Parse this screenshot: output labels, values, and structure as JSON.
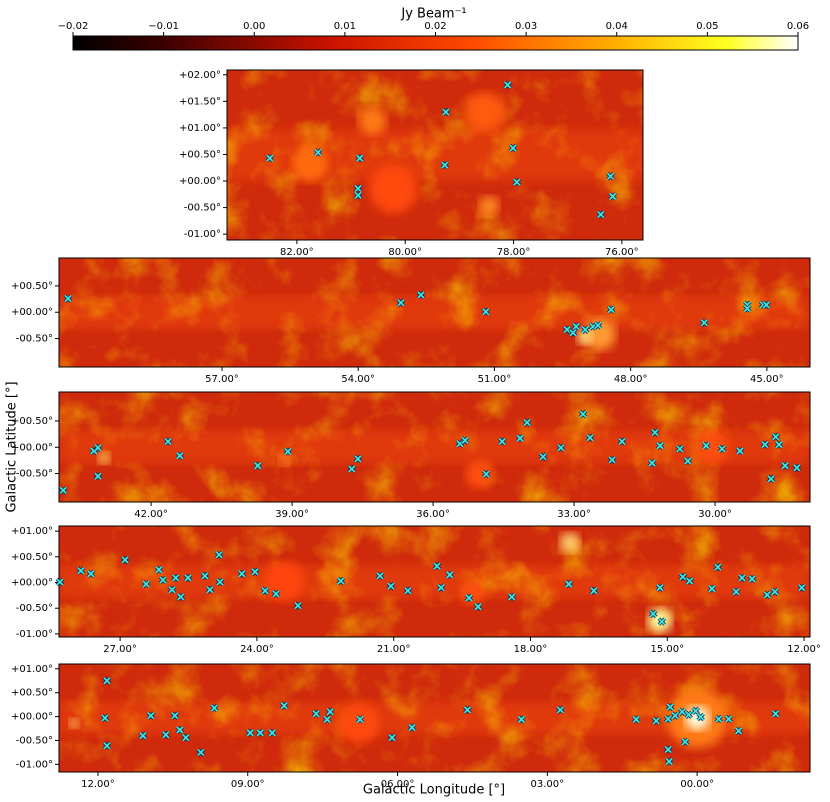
{
  "chart_data": [
    {
      "type": "colorbar",
      "label": "Jy Beam⁻¹",
      "lim": [
        -0.02,
        0.06
      ],
      "ticks": [
        {
          "value": -0.02,
          "label": "−0.02"
        },
        {
          "value": -0.01,
          "label": "−0.01"
        },
        {
          "value": 0,
          "label": "0.00"
        },
        0.01,
        0.02,
        0.03,
        0.04,
        0.05,
        0.06
      ]
    },
    {
      "type": "scatter",
      "xlim": [
        83.29,
        75.61
      ],
      "ylim": [
        -1.11,
        2.09
      ],
      "xticks": [
        {
          "value": 82,
          "label": "82.00°"
        },
        {
          "value": 80,
          "label": "80.00°"
        },
        {
          "value": 78,
          "label": "78.00°"
        },
        {
          "value": 76,
          "label": "76.00°"
        }
      ],
      "yticks": [
        {
          "value": 2,
          "label": "+02.00°"
        },
        {
          "value": 1.5,
          "label": "+01.50°"
        },
        {
          "value": 1,
          "label": "+01.00°"
        },
        {
          "value": 0.5,
          "label": "+00.50°"
        },
        {
          "value": 0,
          "label": "+00.00°"
        },
        {
          "value": -0.5,
          "label": "-00.50°"
        },
        {
          "value": -1,
          "label": "-01.00°"
        }
      ],
      "series": [
        {
          "color": "#3fe0e6",
          "x": [
            78.11,
            79.25,
            78.01,
            82.5,
            81.61,
            80.84,
            79.27,
            76.21,
            77.94,
            80.87,
            80.87,
            76.17,
            76.39
          ],
          "values": [
            1.81,
            1.3,
            0.62,
            0.43,
            0.54,
            0.43,
            0.3,
            0.09,
            -0.02,
            -0.14,
            -0.27,
            -0.29,
            -0.63
          ]
        }
      ]
    },
    {
      "type": "scatter",
      "xlim": [
        60.59,
        44.05
      ],
      "ylim": [
        -1.04,
        1.03
      ],
      "xticks": [
        {
          "value": 57,
          "label": "57.00°"
        },
        {
          "value": 54,
          "label": "54.00°"
        },
        {
          "value": 51,
          "label": "51.00°"
        },
        {
          "value": 48,
          "label": "48.00°"
        },
        {
          "value": 45,
          "label": "45.00°"
        }
      ],
      "yticks": [
        {
          "value": 0.5,
          "label": "+00.50°"
        },
        {
          "value": 0,
          "label": "+00.00°"
        },
        {
          "value": -0.5,
          "label": "-00.50°"
        }
      ],
      "series": [
        {
          "color": "#3fe0e6",
          "x": [
            60.39,
            53.06,
            52.62,
            51.19,
            48.43,
            46.38,
            45.43,
            45.43,
            45.08,
            45.01,
            49.4,
            49.2,
            49.0,
            48.83,
            48.72,
            49.27
          ],
          "values": [
            0.26,
            0.18,
            0.33,
            0.01,
            0.05,
            -0.2,
            0.14,
            0.07,
            0.14,
            0.14,
            -0.33,
            -0.27,
            -0.33,
            -0.27,
            -0.25,
            -0.39
          ]
        }
      ]
    },
    {
      "type": "scatter",
      "xlim": [
        43.96,
        27.98
      ],
      "ylim": [
        -1.04,
        1.05
      ],
      "ylabel": "Galactic Latitude [°]",
      "xticks": [
        {
          "value": 42,
          "label": "42.00°"
        },
        {
          "value": 39,
          "label": "39.00°"
        },
        {
          "value": 36,
          "label": "36.00°"
        },
        {
          "value": 33,
          "label": "33.00°"
        },
        {
          "value": 30,
          "label": "30.00°"
        }
      ],
      "yticks": [
        {
          "value": 0.5,
          "label": "+00.50°"
        },
        {
          "value": 0,
          "label": "+00.00°"
        },
        {
          "value": -0.5,
          "label": "-00.50°"
        }
      ],
      "series": [
        {
          "color": "#3fe0e6",
          "x": [
            43.87,
            43.22,
            43.13,
            43.13,
            41.64,
            41.39,
            39.73,
            39.09,
            37.73,
            37.6,
            35.43,
            35.32,
            34.87,
            34.53,
            34.15,
            34.0,
            33.66,
            33.28,
            32.81,
            32.66,
            32.19,
            31.98,
            31.28,
            31.17,
            31.34,
            30.75,
            30.58,
            30.19,
            29.85,
            29.47,
            28.94,
            28.71,
            28.64,
            28.81,
            28.51,
            28.26
          ],
          "values": [
            -0.82,
            -0.07,
            -0.01,
            -0.55,
            0.11,
            -0.16,
            -0.35,
            -0.08,
            -0.41,
            -0.22,
            0.07,
            0.13,
            -0.51,
            0.11,
            0.17,
            0.47,
            -0.18,
            -0.01,
            0.63,
            0.18,
            -0.24,
            0.11,
            0.28,
            0.03,
            -0.3,
            -0.03,
            -0.26,
            0.03,
            -0.03,
            -0.07,
            0.05,
            0.2,
            0.05,
            -0.6,
            -0.35,
            -0.39
          ]
        }
      ]
    },
    {
      "type": "scatter",
      "xlim": [
        28.34,
        11.87
      ],
      "ylim": [
        -1.06,
        1.1
      ],
      "xticks": [
        {
          "value": 27,
          "label": "27.00°"
        },
        {
          "value": 24,
          "label": "24.00°"
        },
        {
          "value": 21,
          "label": "21.00°"
        },
        {
          "value": 18,
          "label": "18.00°"
        },
        {
          "value": 15,
          "label": "15.00°"
        },
        {
          "value": 12,
          "label": "12.00°"
        }
      ],
      "yticks": [
        {
          "value": 1,
          "label": "+01.00°"
        },
        {
          "value": 0.5,
          "label": "+00.50°"
        },
        {
          "value": 0,
          "label": "+00.00°"
        },
        {
          "value": -0.5,
          "label": "-00.50°"
        },
        {
          "value": -1,
          "label": "-01.00°"
        }
      ],
      "series": [
        {
          "color": "#3fe0e6",
          "x": [
            28.32,
            27.86,
            27.64,
            26.89,
            26.43,
            26.15,
            26.06,
            25.86,
            25.78,
            25.67,
            25.51,
            25.14,
            25.03,
            24.83,
            24.81,
            24.33,
            24.04,
            23.82,
            23.58,
            23.1,
            22.16,
            21.3,
            21.06,
            20.69,
            20.05,
            19.96,
            19.77,
            19.35,
            19.15,
            18.41,
            17.16,
            16.61,
            15.16,
            15.31,
            15.12,
            14.66,
            14.51,
            14.02,
            13.89,
            13.49,
            13.36,
            13.14,
            12.81,
            12.64,
            12.05
          ],
          "values": [
            0.01,
            0.23,
            0.17,
            0.44,
            -0.03,
            0.25,
            0.05,
            -0.14,
            0.09,
            -0.28,
            0.09,
            0.13,
            -0.14,
            0.54,
            0.01,
            0.17,
            0.21,
            -0.16,
            -0.22,
            -0.45,
            0.03,
            0.13,
            -0.07,
            -0.16,
            0.32,
            -0.1,
            0.15,
            -0.3,
            -0.47,
            -0.28,
            -0.03,
            -0.16,
            -0.1,
            -0.61,
            -0.76,
            0.11,
            0.03,
            -0.12,
            0.3,
            -0.18,
            0.09,
            0.07,
            -0.24,
            -0.18,
            -0.1
          ]
        }
      ]
    },
    {
      "type": "scatter",
      "xlim": [
        12.78,
        -2.26
      ],
      "ylim": [
        -1.16,
        1.1
      ],
      "xlabel": "Galactic Longitude [°]",
      "xticks": [
        {
          "value": 12,
          "label": "12.00°"
        },
        {
          "value": 9,
          "label": "09.00°"
        },
        {
          "value": 6,
          "label": "06.00°"
        },
        {
          "value": 3,
          "label": "03.00°"
        },
        {
          "value": 0,
          "label": "00.00°"
        }
      ],
      "yticks": [
        {
          "value": 1,
          "label": "+01.00°"
        },
        {
          "value": 0.5,
          "label": "+00.50°"
        },
        {
          "value": 0,
          "label": "+00.00°"
        },
        {
          "value": -0.5,
          "label": "-00.50°"
        },
        {
          "value": -1,
          "label": "-01.00°"
        }
      ],
      "series": [
        {
          "color": "#3fe0e6",
          "x": [
            11.82,
            11.86,
            11.82,
            11.1,
            10.94,
            10.64,
            10.46,
            10.36,
            10.24,
            9.94,
            9.67,
            8.95,
            8.75,
            8.51,
            8.27,
            7.63,
            7.41,
            7.35,
            6.75,
            6.11,
            5.71,
            4.6,
            3.52,
            2.74,
            1.22,
            0.82,
            0.58,
            0.44,
            0.3,
            0.17,
            0.03,
            -0.07,
            0.54,
            0.58,
            0.56,
            0.24,
            -0.43,
            -0.63,
            -0.83,
            -1.57
          ],
          "values": [
            0.75,
            -0.03,
            -0.61,
            -0.4,
            0.02,
            -0.38,
            0.02,
            -0.28,
            -0.44,
            -0.75,
            0.18,
            -0.34,
            -0.34,
            -0.34,
            0.23,
            0.06,
            -0.06,
            0.1,
            -0.06,
            -0.44,
            -0.23,
            0.14,
            -0.06,
            0.14,
            -0.06,
            -0.09,
            -0.05,
            0.02,
            0.1,
            0.04,
            0.12,
            -0.01,
            0.2,
            -0.69,
            -0.94,
            -0.53,
            -0.05,
            -0.05,
            -0.3,
            0.06
          ]
        }
      ]
    }
  ]
}
